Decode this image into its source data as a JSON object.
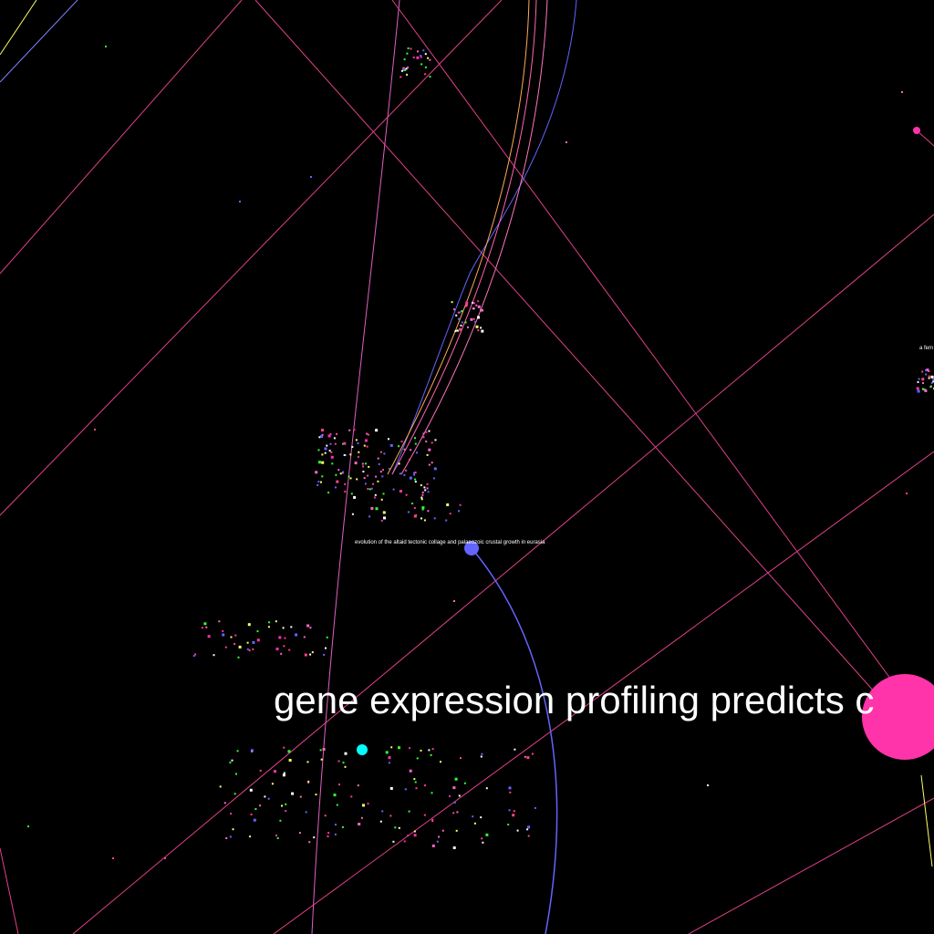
{
  "labels": {
    "large": "gene expression profiling predicts c",
    "small": "evolution of the altaid tectonic collage and palaeozoic crustal growth in eurasia",
    "edge": "a fem"
  },
  "colors": {
    "background": "#000000",
    "pink": "#ff33aa",
    "magenta_edge": "#e0408a",
    "blue": "#6464ff",
    "cyan": "#00ffff",
    "yellow": "#ffff66",
    "green": "#33ff33",
    "orange": "#ffaa55"
  }
}
